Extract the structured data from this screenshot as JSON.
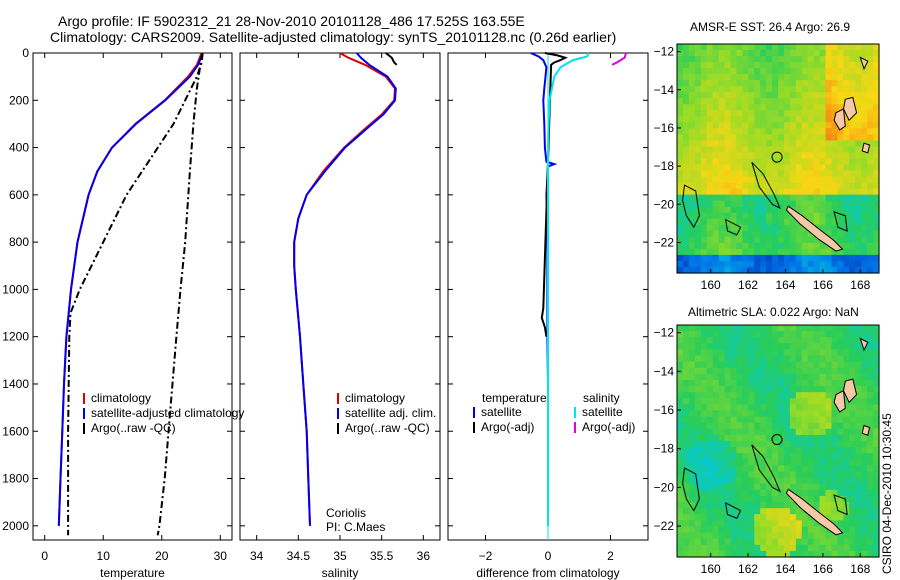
{
  "title": {
    "line1": "Argo profile: IF 5902312_21 28-Nov-2010 20101128_486 17.525S 163.55E",
    "line2": "Climatology: CARS2009. Satellite-adjusted climatology: synTS_20101128.nc (0.26d earlier)"
  },
  "colors": {
    "climatology": "#dd0000",
    "satellite": "#0000ee",
    "argo": "#000000",
    "satellite_salinity": "#00e5ee",
    "argo_adj_salinity": "#e000e0"
  },
  "chart_data": [
    {
      "type": "line",
      "name": "temperature-profile",
      "xlabel": "temperature",
      "ylabel": "",
      "xlim": [
        -2,
        32
      ],
      "ylim": [
        2060,
        0
      ],
      "x_ticks": [
        0,
        10,
        20,
        30
      ],
      "y_ticks": [
        0,
        200,
        400,
        600,
        800,
        1000,
        1200,
        1400,
        1600,
        1800,
        2000
      ],
      "legend": [
        "climatology",
        "satellite-adjusted climatology",
        "Argo(..raw -QC)"
      ],
      "series": [
        {
          "name": "climatology",
          "color_key": "climatology",
          "dash": "solid",
          "depth": [
            0,
            50,
            100,
            200,
            300,
            400,
            500,
            600,
            800,
            1000,
            1100,
            1200,
            1400,
            1600,
            1800,
            2000
          ],
          "values": [
            26.8,
            26.0,
            24.5,
            20.5,
            15.5,
            11.5,
            9.0,
            7.5,
            5.6,
            4.5,
            4.1,
            3.7,
            3.3,
            3.0,
            2.7,
            2.4
          ]
        },
        {
          "name": "satellite-adjusted climatology",
          "color_key": "satellite",
          "dash": "solid",
          "depth": [
            0,
            50,
            100,
            200,
            300,
            400,
            500,
            600,
            800,
            1000,
            1100,
            1200,
            1400,
            1600,
            1800,
            2000
          ],
          "values": [
            27.0,
            26.2,
            24.8,
            20.6,
            15.6,
            11.5,
            9.0,
            7.5,
            5.6,
            4.5,
            4.1,
            3.7,
            3.3,
            3.0,
            2.7,
            2.4
          ]
        },
        {
          "name": "Argo raw",
          "color_key": "argo",
          "dash": "dashdot",
          "depth": [
            0,
            20,
            50,
            100,
            150,
            200,
            300,
            500,
            800,
            1000,
            1200,
            1500,
            1800,
            2000,
            2040
          ],
          "values": [
            26.9,
            26.8,
            26.6,
            26.3,
            26.0,
            25.8,
            25.4,
            24.8,
            24.0,
            23.2,
            22.5,
            21.5,
            20.5,
            19.6,
            19.3
          ]
        },
        {
          "name": "Argo QC",
          "color_key": "argo",
          "dash": "dashdot",
          "depth": [
            0,
            40,
            100,
            300,
            600,
            1000,
            1100,
            1200,
            1400,
            1600,
            1800,
            2000,
            2040
          ],
          "values": [
            27.0,
            26.8,
            26.0,
            22.0,
            14.0,
            6.0,
            4.4,
            4.2,
            4.1,
            4.0,
            4.0,
            4.0,
            4.0
          ]
        }
      ]
    },
    {
      "type": "line",
      "name": "salinity-profile",
      "xlabel": "salinity",
      "xlim": [
        33.8,
        36.2
      ],
      "ylim": [
        2060,
        0
      ],
      "x_ticks": [
        34,
        34.5,
        35,
        35.5,
        36
      ],
      "legend": [
        "climatology",
        "satellite adj. clim.",
        "Argo(..raw -QC)"
      ],
      "annotation": [
        "Coriolis",
        "PI: C.Maes"
      ],
      "series": [
        {
          "name": "climatology",
          "color_key": "climatology",
          "dash": "solid",
          "depth": [
            0,
            20,
            50,
            100,
            150,
            200,
            260,
            320,
            400,
            500,
            600,
            700,
            800,
            900,
            1000,
            1200,
            1400,
            1600,
            1800,
            2000
          ],
          "values": [
            35.0,
            35.1,
            35.3,
            35.55,
            35.66,
            35.65,
            35.5,
            35.3,
            35.05,
            34.8,
            34.6,
            34.5,
            34.45,
            34.45,
            34.47,
            34.52,
            34.56,
            34.6,
            34.62,
            34.64
          ]
        },
        {
          "name": "satellite adj. clim.",
          "color_key": "satellite",
          "dash": "solid",
          "depth": [
            0,
            20,
            50,
            100,
            150,
            200,
            260,
            320,
            400,
            500,
            600,
            700,
            800,
            900,
            1000,
            1200,
            1400,
            1600,
            1800,
            2000
          ],
          "values": [
            35.2,
            35.25,
            35.35,
            35.57,
            35.67,
            35.66,
            35.52,
            35.32,
            35.06,
            34.82,
            34.6,
            34.5,
            34.45,
            34.45,
            34.47,
            34.52,
            34.56,
            34.6,
            34.62,
            34.64
          ]
        },
        {
          "name": "Argo",
          "color_key": "argo",
          "dash": "solid",
          "depth": [
            0,
            20,
            40,
            50
          ],
          "values": [
            35.55,
            35.62,
            35.65,
            35.68
          ]
        }
      ]
    },
    {
      "type": "line",
      "name": "difference-profile",
      "xlabel": "difference from climatology",
      "xlim": [
        -3.2,
        3.2
      ],
      "ylim": [
        2060,
        0
      ],
      "x_ticks": [
        -2,
        0,
        2
      ],
      "legend_columns": [
        "temperature",
        "salinity"
      ],
      "legend_rows": [
        "satellite",
        "Argo(-adj)"
      ],
      "series": [
        {
          "name": "temperature satellite",
          "color_key": "satellite",
          "dash": "solid",
          "depth": [
            0,
            15,
            30,
            60,
            100,
            150,
            200,
            300,
            400,
            460,
            470,
            480,
            600,
            800,
            1000,
            1200,
            1400,
            1600,
            1800,
            2000
          ],
          "values": [
            -0.55,
            -0.3,
            -0.15,
            -0.05,
            -0.08,
            -0.12,
            -0.15,
            -0.12,
            -0.1,
            -0.05,
            0.2,
            0.0,
            -0.05,
            -0.02,
            -0.02,
            -0.02,
            0.0,
            0.0,
            0.0,
            0.0
          ]
        },
        {
          "name": "temperature Argo",
          "color_key": "argo",
          "dash": "solid",
          "depth": [
            0,
            10,
            20,
            30,
            40,
            50,
            1080,
            1120,
            1160,
            1200
          ],
          "values": [
            -0.1,
            0.3,
            0.55,
            0.4,
            0.2,
            0.1,
            -0.15,
            -0.2,
            -0.1,
            -0.05
          ]
        },
        {
          "name": "salinity satellite",
          "color_key": "satellite_salinity",
          "dash": "solid",
          "depth": [
            0,
            15,
            30,
            60,
            100,
            200,
            300,
            400,
            600,
            800,
            1000,
            1200,
            1400,
            1600,
            1800,
            2000
          ],
          "values": [
            1.3,
            1.25,
            0.8,
            0.4,
            0.2,
            0.05,
            0.02,
            0.0,
            0.0,
            0.0,
            0.0,
            0.0,
            0.0,
            0.0,
            0.0,
            0.0
          ]
        },
        {
          "name": "salinity Argo",
          "color_key": "argo_adj_salinity",
          "dash": "solid",
          "depth": [
            0,
            20,
            40,
            50
          ],
          "values": [
            2.5,
            2.45,
            2.2,
            2.05
          ]
        }
      ]
    },
    {
      "type": "heatmap",
      "name": "sst-map",
      "title": "AMSR-E SST: 26.4 Argo: 26.9",
      "xlim": [
        158.2,
        169.0
      ],
      "ylim": [
        -23.6,
        -11.6
      ],
      "x_ticks": [
        160,
        162,
        164,
        166,
        168
      ],
      "y_ticks": [
        -12,
        -14,
        -16,
        -18,
        -20,
        -22
      ],
      "marker": {
        "lon": 163.55,
        "lat": -17.525
      }
    },
    {
      "type": "heatmap",
      "name": "sla-map",
      "title": "Altimetric SLA: 0.022 Argo: NaN",
      "xlim": [
        158.2,
        169.0
      ],
      "ylim": [
        -23.6,
        -11.6
      ],
      "x_ticks": [
        160,
        162,
        164,
        166,
        168
      ],
      "y_ticks": [
        -12,
        -14,
        -16,
        -18,
        -20,
        -22
      ],
      "marker": {
        "lon": 163.55,
        "lat": -17.525
      }
    }
  ],
  "footer_stamp": "CSIRO 04-Dec-2010 10:30:45"
}
